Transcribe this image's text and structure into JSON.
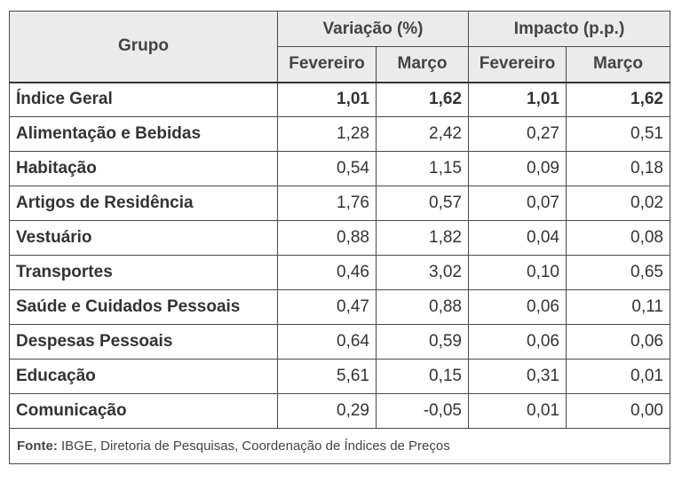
{
  "header": {
    "group": "Grupo",
    "variation": "Variação (%)",
    "impact": "Impacto (p.p.)",
    "feb": "Fevereiro",
    "mar": "Março"
  },
  "rows": [
    {
      "group": "Índice Geral",
      "var_feb": "1,01",
      "var_mar": "1,62",
      "imp_feb": "1,01",
      "imp_mar": "1,62"
    },
    {
      "group": "Alimentação e Bebidas",
      "var_feb": "1,28",
      "var_mar": "2,42",
      "imp_feb": "0,27",
      "imp_mar": "0,51"
    },
    {
      "group": "Habitação",
      "var_feb": "0,54",
      "var_mar": "1,15",
      "imp_feb": "0,09",
      "imp_mar": "0,18"
    },
    {
      "group": "Artigos de Residência",
      "var_feb": "1,76",
      "var_mar": "0,57",
      "imp_feb": "0,07",
      "imp_mar": "0,02"
    },
    {
      "group": "Vestuário",
      "var_feb": "0,88",
      "var_mar": "1,82",
      "imp_feb": "0,04",
      "imp_mar": "0,08"
    },
    {
      "group": "Transportes",
      "var_feb": "0,46",
      "var_mar": "3,02",
      "imp_feb": "0,10",
      "imp_mar": "0,65"
    },
    {
      "group": "Saúde e Cuidados Pessoais",
      "var_feb": "0,47",
      "var_mar": "0,88",
      "imp_feb": "0,06",
      "imp_mar": "0,11"
    },
    {
      "group": "Despesas Pessoais",
      "var_feb": "0,64",
      "var_mar": "0,59",
      "imp_feb": "0,06",
      "imp_mar": "0,06"
    },
    {
      "group": "Educação",
      "var_feb": "5,61",
      "var_mar": "0,15",
      "imp_feb": "0,31",
      "imp_mar": "0,01"
    },
    {
      "group": "Comunicação",
      "var_feb": "0,29",
      "var_mar": "-0,05",
      "imp_feb": "0,01",
      "imp_mar": "0,00"
    }
  ],
  "source": {
    "label": "Fonte:",
    "text": " IBGE, Diretoria de Pesquisas, Coordenação de Índices de Preços"
  }
}
